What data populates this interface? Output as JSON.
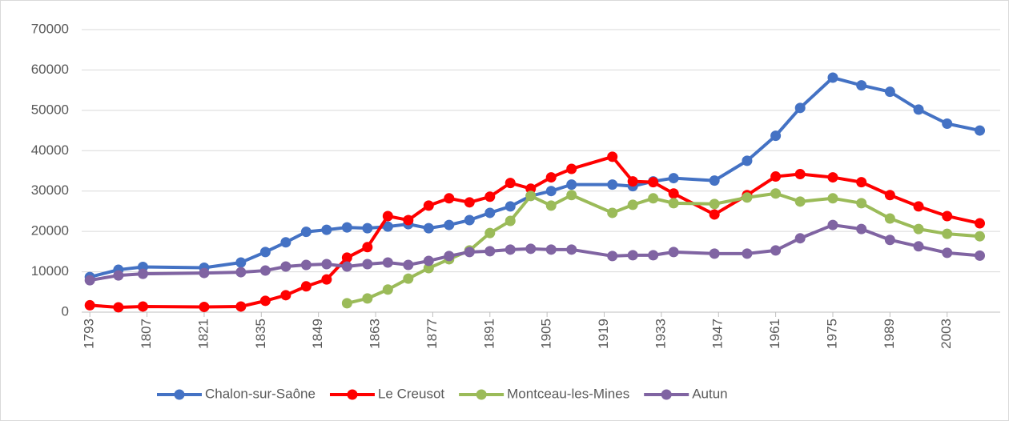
{
  "chart_data": {
    "type": "line",
    "x": [
      1793,
      1800,
      1806,
      1821,
      1830,
      1836,
      1841,
      1846,
      1851,
      1856,
      1861,
      1866,
      1871,
      1876,
      1881,
      1886,
      1891,
      1896,
      1901,
      1906,
      1911,
      1921,
      1926,
      1931,
      1936,
      1946,
      1954,
      1961,
      1967,
      1975,
      1982,
      1989,
      1996,
      2003,
      2011
    ],
    "series": [
      {
        "name": "Chalon-sur-Saône",
        "color": "#4472c4",
        "values": [
          8700,
          10500,
          11200,
          11000,
          12300,
          14900,
          17300,
          19900,
          20400,
          21000,
          20800,
          21200,
          21800,
          20800,
          21600,
          22800,
          24600,
          26200,
          28800,
          30000,
          31600,
          31600,
          31200,
          32400,
          33200,
          32600,
          37500,
          43700,
          50600,
          58100,
          56200,
          54600,
          50200,
          46700,
          45000
        ]
      },
      {
        "name": "Le Creusot",
        "color": "#ff0000",
        "values": [
          1700,
          1200,
          1400,
          1300,
          1400,
          2800,
          4200,
          6400,
          8100,
          13500,
          16100,
          23800,
          22800,
          26400,
          28200,
          27200,
          28600,
          32000,
          30600,
          33400,
          35500,
          38500,
          32400,
          32200,
          29400,
          24200,
          29000,
          33600,
          34200,
          33400,
          32200,
          29000,
          26200,
          23800,
          22000
        ]
      },
      {
        "name": "Montceau-les-Mines",
        "color": "#9bbb59",
        "values": [
          null,
          null,
          null,
          null,
          null,
          null,
          null,
          null,
          null,
          2200,
          3400,
          5600,
          8300,
          10900,
          13100,
          15300,
          19600,
          22600,
          28800,
          26400,
          29000,
          24600,
          26600,
          28200,
          27000,
          26800,
          28400,
          29400,
          27400,
          28200,
          27000,
          23200,
          20600,
          19400,
          18800
        ]
      },
      {
        "name": "Autun",
        "color": "#8064a2",
        "values": [
          7900,
          9100,
          9500,
          9700,
          9900,
          10300,
          11300,
          11700,
          11900,
          11300,
          11900,
          12300,
          11700,
          12700,
          13900,
          14900,
          15100,
          15500,
          15700,
          15500,
          15500,
          13900,
          14100,
          14100,
          14900,
          14500,
          14500,
          15300,
          18300,
          21600,
          20600,
          17900,
          16300,
          14700,
          14000
        ]
      }
    ],
    "xlim": [
      1791,
      2016
    ],
    "xticks": [
      1793,
      1807,
      1821,
      1835,
      1849,
      1863,
      1877,
      1891,
      1905,
      1919,
      1933,
      1947,
      1961,
      1975,
      1989,
      2003
    ],
    "ylim": [
      0,
      70000
    ],
    "yticks": [
      0,
      10000,
      20000,
      30000,
      40000,
      50000,
      60000,
      70000
    ],
    "grid": true,
    "legend": "bottom"
  }
}
